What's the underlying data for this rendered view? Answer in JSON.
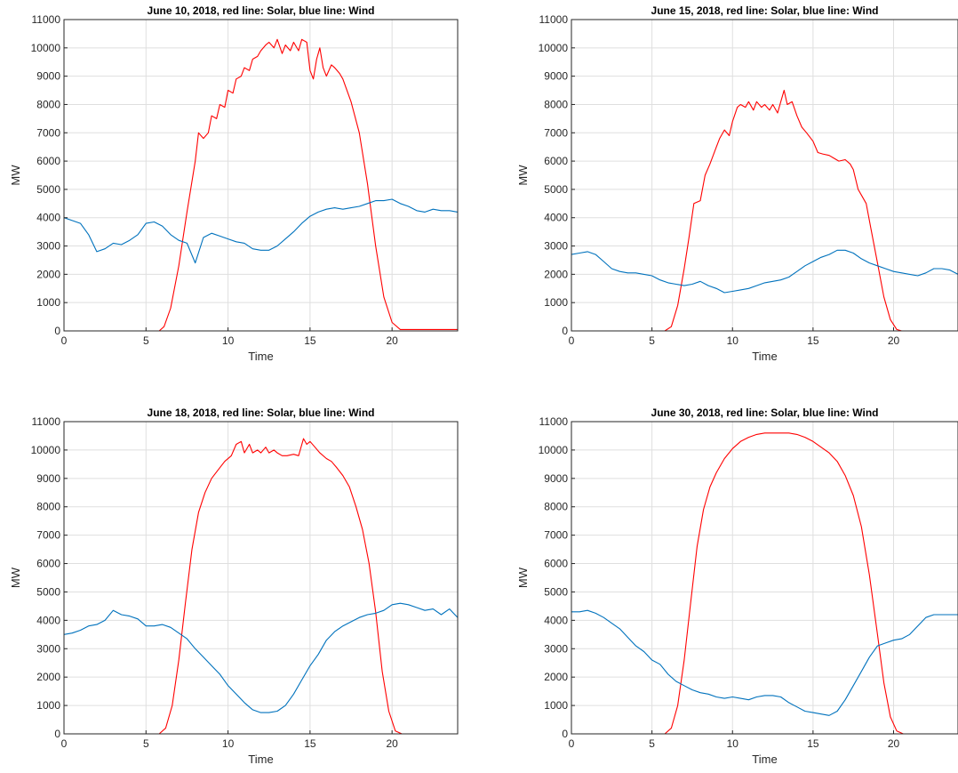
{
  "chart_data": [
    {
      "type": "line",
      "title": "June 10, 2018, red line: Solar, blue line: Wind",
      "xlabel": "Time",
      "ylabel": "MW",
      "xlim": [
        0,
        24
      ],
      "ylim": [
        0,
        11000
      ],
      "xticks": [
        "0",
        "5",
        "10",
        "15",
        "20"
      ],
      "yticks": [
        "0",
        "1000",
        "2000",
        "3000",
        "4000",
        "5000",
        "6000",
        "7000",
        "8000",
        "9000",
        "10000",
        "11000"
      ],
      "grid": true,
      "series": [
        {
          "color": "#ff0000",
          "x": [
            0,
            5.8,
            6.1,
            6.5,
            7.0,
            7.5,
            8.0,
            8.2,
            8.5,
            8.8,
            9.0,
            9.3,
            9.5,
            9.8,
            10.0,
            10.3,
            10.5,
            10.8,
            11.0,
            11.3,
            11.5,
            11.8,
            12.0,
            12.3,
            12.5,
            12.8,
            13.0,
            13.3,
            13.5,
            13.8,
            14.0,
            14.3,
            14.5,
            14.8,
            15.0,
            15.2,
            15.4,
            15.6,
            15.8,
            16.0,
            16.3,
            16.5,
            16.8,
            17.0,
            17.5,
            18.0,
            18.5,
            19.0,
            19.5,
            20.0,
            20.5,
            24
          ],
          "y": [
            0,
            0,
            150,
            800,
            2300,
            4200,
            6000,
            7000,
            6800,
            7000,
            7600,
            7500,
            8000,
            7900,
            8500,
            8400,
            8900,
            9000,
            9300,
            9200,
            9600,
            9700,
            9900,
            10100,
            10200,
            10000,
            10300,
            9800,
            10100,
            9900,
            10200,
            9900,
            10300,
            10200,
            9200,
            8900,
            9600,
            10000,
            9300,
            9000,
            9400,
            9300,
            9100,
            8900,
            8100,
            7000,
            5200,
            3000,
            1200,
            300,
            50,
            50
          ]
        },
        {
          "color": "#0072bd",
          "x": [
            0,
            0.5,
            1.0,
            1.5,
            2.0,
            2.5,
            3.0,
            3.5,
            4.0,
            4.5,
            5.0,
            5.5,
            6.0,
            6.5,
            7.0,
            7.5,
            8.0,
            8.5,
            9.0,
            9.5,
            10.0,
            10.5,
            11.0,
            11.5,
            12.0,
            12.5,
            13.0,
            13.5,
            14.0,
            14.5,
            15.0,
            15.5,
            16.0,
            16.5,
            17.0,
            17.5,
            18.0,
            18.5,
            19.0,
            19.5,
            20.0,
            20.5,
            21.0,
            21.5,
            22.0,
            22.5,
            23.0,
            23.5,
            24.0
          ],
          "y": [
            4000,
            3900,
            3800,
            3400,
            2800,
            2900,
            3100,
            3050,
            3200,
            3400,
            3800,
            3850,
            3700,
            3400,
            3200,
            3100,
            2400,
            3300,
            3450,
            3350,
            3250,
            3150,
            3100,
            2900,
            2850,
            2850,
            3000,
            3250,
            3500,
            3800,
            4050,
            4200,
            4300,
            4350,
            4300,
            4350,
            4400,
            4500,
            4600,
            4600,
            4650,
            4500,
            4400,
            4250,
            4200,
            4300,
            4250,
            4250,
            4200
          ]
        }
      ]
    },
    {
      "type": "line",
      "title": "June 15, 2018, red line: Solar, blue line: Wind",
      "xlabel": "Time",
      "ylabel": "MW",
      "xlim": [
        0,
        24
      ],
      "ylim": [
        0,
        11000
      ],
      "xticks": [
        "0",
        "5",
        "10",
        "15",
        "20"
      ],
      "yticks": [
        "0",
        "1000",
        "2000",
        "3000",
        "4000",
        "5000",
        "6000",
        "7000",
        "8000",
        "9000",
        "10000",
        "11000"
      ],
      "grid": true,
      "series": [
        {
          "color": "#ff0000",
          "x": [
            0,
            5.8,
            6.2,
            6.6,
            7.0,
            7.3,
            7.6,
            8.0,
            8.3,
            8.6,
            9.0,
            9.2,
            9.5,
            9.8,
            10.0,
            10.3,
            10.5,
            10.8,
            11.0,
            11.3,
            11.5,
            11.8,
            12.0,
            12.3,
            12.5,
            12.8,
            13.0,
            13.2,
            13.4,
            13.7,
            14.0,
            14.3,
            14.6,
            15.0,
            15.3,
            15.6,
            16.0,
            16.3,
            16.6,
            17.0,
            17.3,
            17.5,
            17.8,
            18.0,
            18.3,
            18.6,
            19.0,
            19.4,
            19.8,
            20.2,
            20.5,
            24
          ],
          "y": [
            0,
            0,
            150,
            900,
            2200,
            3300,
            4500,
            4600,
            5500,
            5900,
            6500,
            6800,
            7100,
            6900,
            7400,
            7900,
            8000,
            7900,
            8100,
            7800,
            8100,
            7900,
            8000,
            7800,
            8000,
            7700,
            8100,
            8500,
            8000,
            8100,
            7600,
            7200,
            7000,
            6700,
            6300,
            6250,
            6200,
            6100,
            6000,
            6050,
            5900,
            5700,
            5000,
            4800,
            4500,
            3600,
            2400,
            1200,
            400,
            50,
            0,
            0
          ]
        },
        {
          "color": "#0072bd",
          "x": [
            0,
            0.5,
            1.0,
            1.5,
            2.0,
            2.5,
            3.0,
            3.5,
            4.0,
            4.5,
            5.0,
            5.5,
            6.0,
            6.5,
            7.0,
            7.5,
            8.0,
            8.5,
            9.0,
            9.5,
            10.0,
            10.5,
            11.0,
            11.5,
            12.0,
            12.5,
            13.0,
            13.5,
            14.0,
            14.5,
            15.0,
            15.5,
            16.0,
            16.5,
            17.0,
            17.5,
            18.0,
            18.5,
            19.0,
            19.5,
            20.0,
            20.5,
            21.0,
            21.5,
            22.0,
            22.5,
            23.0,
            23.5,
            24.0
          ],
          "y": [
            2700,
            2750,
            2800,
            2700,
            2450,
            2200,
            2100,
            2050,
            2050,
            2000,
            1950,
            1800,
            1700,
            1650,
            1600,
            1650,
            1750,
            1600,
            1500,
            1350,
            1400,
            1450,
            1500,
            1600,
            1700,
            1750,
            1800,
            1900,
            2100,
            2300,
            2450,
            2600,
            2700,
            2850,
            2850,
            2750,
            2550,
            2400,
            2300,
            2200,
            2100,
            2050,
            2000,
            1950,
            2050,
            2200,
            2200,
            2150,
            2000
          ]
        }
      ]
    },
    {
      "type": "line",
      "title": "June 18, 2018, red line: Solar, blue line: Wind",
      "xlabel": "Time",
      "ylabel": "MW",
      "xlim": [
        0,
        24
      ],
      "ylim": [
        0,
        11000
      ],
      "xticks": [
        "0",
        "5",
        "10",
        "15",
        "20"
      ],
      "yticks": [
        "0",
        "1000",
        "2000",
        "3000",
        "4000",
        "5000",
        "6000",
        "7000",
        "8000",
        "9000",
        "10000",
        "11000"
      ],
      "grid": true,
      "series": [
        {
          "color": "#ff0000",
          "x": [
            0,
            5.8,
            6.2,
            6.6,
            7.0,
            7.4,
            7.8,
            8.2,
            8.6,
            9.0,
            9.4,
            9.8,
            10.2,
            10.5,
            10.8,
            11.0,
            11.3,
            11.5,
            11.8,
            12.0,
            12.3,
            12.5,
            12.8,
            13.0,
            13.3,
            13.6,
            14.0,
            14.3,
            14.6,
            14.8,
            15.0,
            15.3,
            15.6,
            16.0,
            16.3,
            16.6,
            17.0,
            17.4,
            17.8,
            18.2,
            18.6,
            19.0,
            19.4,
            19.8,
            20.2,
            20.6,
            24
          ],
          "y": [
            0,
            0,
            200,
            1000,
            2600,
            4600,
            6500,
            7800,
            8500,
            9000,
            9300,
            9600,
            9800,
            10200,
            10300,
            9900,
            10200,
            9900,
            10000,
            9900,
            10100,
            9900,
            10000,
            9900,
            9800,
            9800,
            9850,
            9800,
            10400,
            10200,
            10300,
            10100,
            9900,
            9700,
            9600,
            9400,
            9100,
            8700,
            8000,
            7200,
            6000,
            4300,
            2200,
            800,
            100,
            0,
            0
          ]
        },
        {
          "color": "#0072bd",
          "x": [
            0,
            0.5,
            1.0,
            1.5,
            2.0,
            2.5,
            3.0,
            3.5,
            4.0,
            4.5,
            5.0,
            5.5,
            6.0,
            6.5,
            7.0,
            7.5,
            8.0,
            8.5,
            9.0,
            9.5,
            10.0,
            10.5,
            11.0,
            11.5,
            12.0,
            12.5,
            13.0,
            13.5,
            14.0,
            14.5,
            15.0,
            15.5,
            16.0,
            16.5,
            17.0,
            17.5,
            18.0,
            18.5,
            19.0,
            19.5,
            20.0,
            20.5,
            21.0,
            21.5,
            22.0,
            22.5,
            23.0,
            23.5,
            24.0
          ],
          "y": [
            3500,
            3550,
            3650,
            3800,
            3850,
            4000,
            4350,
            4200,
            4150,
            4050,
            3800,
            3800,
            3850,
            3750,
            3550,
            3350,
            3000,
            2700,
            2400,
            2100,
            1700,
            1400,
            1100,
            850,
            750,
            750,
            800,
            1000,
            1400,
            1900,
            2400,
            2800,
            3300,
            3600,
            3800,
            3950,
            4100,
            4200,
            4250,
            4350,
            4550,
            4600,
            4550,
            4450,
            4350,
            4400,
            4200,
            4400,
            4100
          ]
        }
      ]
    },
    {
      "type": "line",
      "title": "June 30, 2018, red line: Solar, blue line: Wind",
      "xlabel": "Time",
      "ylabel": "MW",
      "xlim": [
        0,
        24
      ],
      "ylim": [
        0,
        11000
      ],
      "xticks": [
        "0",
        "5",
        "10",
        "15",
        "20"
      ],
      "yticks": [
        "0",
        "1000",
        "2000",
        "3000",
        "4000",
        "5000",
        "6000",
        "7000",
        "8000",
        "9000",
        "10000",
        "11000"
      ],
      "grid": true,
      "series": [
        {
          "color": "#ff0000",
          "x": [
            0,
            5.8,
            6.2,
            6.6,
            7.0,
            7.4,
            7.8,
            8.2,
            8.6,
            9.0,
            9.5,
            10.0,
            10.5,
            11.0,
            11.5,
            12.0,
            12.5,
            13.0,
            13.5,
            14.0,
            14.5,
            15.0,
            15.5,
            16.0,
            16.5,
            17.0,
            17.5,
            18.0,
            18.5,
            19.0,
            19.4,
            19.8,
            20.2,
            20.6,
            24
          ],
          "y": [
            0,
            0,
            200,
            1000,
            2600,
            4600,
            6600,
            7900,
            8700,
            9200,
            9700,
            10050,
            10300,
            10450,
            10550,
            10600,
            10600,
            10600,
            10600,
            10550,
            10450,
            10300,
            10100,
            9900,
            9600,
            9100,
            8400,
            7300,
            5600,
            3500,
            1800,
            600,
            100,
            0,
            0
          ]
        },
        {
          "color": "#0072bd",
          "x": [
            0,
            0.5,
            1.0,
            1.5,
            2.0,
            2.5,
            3.0,
            3.5,
            4.0,
            4.5,
            5.0,
            5.5,
            6.0,
            6.5,
            7.0,
            7.5,
            8.0,
            8.5,
            9.0,
            9.5,
            10.0,
            10.5,
            11.0,
            11.5,
            12.0,
            12.5,
            13.0,
            13.5,
            14.0,
            14.5,
            15.0,
            15.5,
            16.0,
            16.5,
            17.0,
            17.5,
            18.0,
            18.5,
            19.0,
            19.5,
            20.0,
            20.5,
            21.0,
            21.5,
            22.0,
            22.5,
            23.0,
            23.5,
            24.0
          ],
          "y": [
            4300,
            4300,
            4350,
            4250,
            4100,
            3900,
            3700,
            3400,
            3100,
            2900,
            2600,
            2450,
            2100,
            1850,
            1700,
            1550,
            1450,
            1400,
            1300,
            1250,
            1300,
            1250,
            1200,
            1300,
            1350,
            1350,
            1300,
            1100,
            950,
            800,
            750,
            700,
            650,
            800,
            1200,
            1700,
            2200,
            2700,
            3100,
            3200,
            3300,
            3350,
            3500,
            3800,
            4100,
            4200,
            4200,
            4200,
            4200
          ]
        }
      ]
    }
  ]
}
